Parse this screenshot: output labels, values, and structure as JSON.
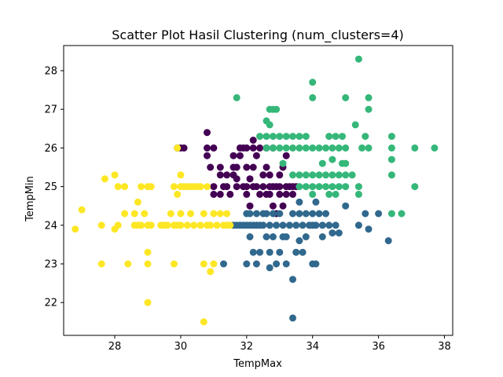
{
  "chart_data": {
    "type": "scatter",
    "title": "Scatter Plot Hasil Clustering (num_clusters=4)",
    "xlabel": "TempMax",
    "ylabel": "TempMin",
    "xlim": [
      26.45,
      38.25
    ],
    "ylim": [
      21.15,
      28.65
    ],
    "xticks": [
      28,
      30,
      32,
      34,
      36,
      38
    ],
    "yticks": [
      22,
      23,
      24,
      25,
      26,
      27,
      28
    ],
    "grid": false,
    "legend": "none",
    "series": [
      {
        "color": "#440154",
        "points": [
          [
            29.9,
            26
          ],
          [
            30,
            26
          ],
          [
            30.1,
            26
          ],
          [
            30.8,
            26.4
          ],
          [
            30.8,
            26
          ],
          [
            30.8,
            25.8
          ],
          [
            31,
            26
          ],
          [
            30.9,
            25.5
          ],
          [
            31,
            25
          ],
          [
            31.2,
            25.5
          ],
          [
            31.2,
            25.3
          ],
          [
            31,
            24.8
          ],
          [
            31.2,
            24.8
          ],
          [
            31.4,
            25.3
          ],
          [
            31.4,
            25
          ],
          [
            31.5,
            24.8
          ],
          [
            31.6,
            25.3
          ],
          [
            31.6,
            25.8
          ],
          [
            31.7,
            25
          ],
          [
            31.7,
            25.5
          ],
          [
            31.8,
            26
          ],
          [
            31.9,
            25
          ],
          [
            31.8,
            25.8
          ],
          [
            32,
            26
          ],
          [
            32,
            25
          ],
          [
            32,
            25.5
          ],
          [
            32,
            24.8
          ],
          [
            32.1,
            24.5
          ],
          [
            32.2,
            25
          ],
          [
            32.2,
            26
          ],
          [
            32.2,
            26.2
          ],
          [
            32.2,
            25.5
          ],
          [
            32.3,
            25.8
          ],
          [
            32.3,
            25
          ],
          [
            32.4,
            26
          ],
          [
            32.5,
            25
          ],
          [
            32.5,
            25.3
          ],
          [
            32.6,
            24.8
          ],
          [
            32.6,
            25.5
          ],
          [
            32.6,
            26
          ],
          [
            32.7,
            25
          ],
          [
            32.7,
            25.3
          ],
          [
            32.7,
            24.8
          ],
          [
            32.8,
            25
          ],
          [
            32.8,
            26
          ],
          [
            32.8,
            24.5
          ],
          [
            32.9,
            25
          ],
          [
            33,
            25
          ],
          [
            33,
            24.8
          ],
          [
            33,
            25.3
          ],
          [
            33.1,
            25.5
          ],
          [
            33.1,
            24.5
          ],
          [
            33.2,
            25
          ],
          [
            33.2,
            25.8
          ],
          [
            33.3,
            25
          ],
          [
            33.4,
            25
          ],
          [
            33.4,
            24.8
          ],
          [
            33.5,
            25
          ],
          [
            31.7,
            25.2
          ],
          [
            32.9,
            24.3
          ],
          [
            31.3,
            25
          ],
          [
            32.4,
            24.8
          ],
          [
            31.9,
            26
          ],
          [
            31.6,
            25.5
          ],
          [
            33.2,
            24.8
          ],
          [
            32.1,
            25.2
          ]
        ]
      },
      {
        "color": "#31688e",
        "points": [
          [
            31.3,
            23
          ],
          [
            31.6,
            24
          ],
          [
            31.7,
            24
          ],
          [
            31.8,
            24
          ],
          [
            31.9,
            24
          ],
          [
            32,
            24
          ],
          [
            32,
            24.3
          ],
          [
            32,
            23
          ],
          [
            32.1,
            24
          ],
          [
            32.1,
            24.3
          ],
          [
            32.1,
            23.7
          ],
          [
            32.2,
            24
          ],
          [
            32.2,
            23.3
          ],
          [
            32.3,
            24
          ],
          [
            32.3,
            24.3
          ],
          [
            32.3,
            23
          ],
          [
            32.4,
            24
          ],
          [
            32.4,
            23.3
          ],
          [
            32.5,
            24
          ],
          [
            32.5,
            24.3
          ],
          [
            32.6,
            24.3
          ],
          [
            32.6,
            23.7
          ],
          [
            32.7,
            24
          ],
          [
            32.7,
            23.3
          ],
          [
            32.8,
            24.3
          ],
          [
            32.8,
            23.7
          ],
          [
            32.9,
            24
          ],
          [
            32.9,
            23
          ],
          [
            33,
            24.3
          ],
          [
            33,
            23.3
          ],
          [
            33.1,
            23.7
          ],
          [
            33.1,
            24
          ],
          [
            33.2,
            23
          ],
          [
            33.3,
            24
          ],
          [
            33.4,
            24.3
          ],
          [
            33.4,
            22.6
          ],
          [
            33.4,
            21.6
          ],
          [
            33.5,
            24
          ],
          [
            33.5,
            23.3
          ],
          [
            33.6,
            24.3
          ],
          [
            33.6,
            24.6
          ],
          [
            33.7,
            23.3
          ],
          [
            33.7,
            24
          ],
          [
            33.8,
            24.3
          ],
          [
            33.8,
            23.7
          ],
          [
            33.9,
            24
          ],
          [
            34,
            24
          ],
          [
            34,
            24.3
          ],
          [
            34,
            23
          ],
          [
            34.1,
            24
          ],
          [
            34.1,
            24.6
          ],
          [
            34.2,
            24.3
          ],
          [
            34.3,
            24
          ],
          [
            34.3,
            23.7
          ],
          [
            34.4,
            24.3
          ],
          [
            34.5,
            24
          ],
          [
            34.6,
            23.8
          ],
          [
            34.7,
            24
          ],
          [
            34.8,
            23.8
          ],
          [
            35,
            24.5
          ],
          [
            35.4,
            24
          ],
          [
            35.6,
            24.3
          ],
          [
            35.7,
            23.9
          ],
          [
            36,
            24.3
          ],
          [
            36.3,
            23.6
          ],
          [
            33.2,
            23.7
          ],
          [
            32.7,
            22.9
          ],
          [
            33.6,
            23.6
          ],
          [
            34.1,
            23
          ]
        ]
      },
      {
        "color": "#35b779",
        "points": [
          [
            31.7,
            27.3
          ],
          [
            32.6,
            26.7
          ],
          [
            32.7,
            26.6
          ],
          [
            32.7,
            27
          ],
          [
            32.8,
            27
          ],
          [
            32.9,
            27
          ],
          [
            32.4,
            26.3
          ],
          [
            32.6,
            26.3
          ],
          [
            32.8,
            26.3
          ],
          [
            33,
            26.3
          ],
          [
            33.2,
            26.3
          ],
          [
            33.4,
            26.3
          ],
          [
            33.6,
            26.3
          ],
          [
            33.8,
            26.3
          ],
          [
            34.5,
            26.3
          ],
          [
            34.7,
            26.3
          ],
          [
            34.9,
            26.3
          ],
          [
            35.6,
            26.3
          ],
          [
            36.4,
            26.3
          ],
          [
            32.6,
            26
          ],
          [
            32.8,
            26
          ],
          [
            33,
            26
          ],
          [
            33.2,
            26
          ],
          [
            33.4,
            26
          ],
          [
            33.6,
            26
          ],
          [
            33.8,
            26
          ],
          [
            34,
            26
          ],
          [
            34.2,
            26
          ],
          [
            34.4,
            26
          ],
          [
            34.6,
            26
          ],
          [
            34.8,
            26
          ],
          [
            35,
            26
          ],
          [
            35.5,
            26
          ],
          [
            35.7,
            26
          ],
          [
            36.4,
            26
          ],
          [
            37.1,
            26
          ],
          [
            37.7,
            26
          ],
          [
            33.1,
            25.6
          ],
          [
            34.3,
            25.6
          ],
          [
            34.9,
            25.6
          ],
          [
            35,
            25.6
          ],
          [
            34.6,
            25.7
          ],
          [
            36.4,
            25.7
          ],
          [
            33.4,
            25.3
          ],
          [
            33.6,
            25.3
          ],
          [
            33.8,
            25.3
          ],
          [
            34,
            25.3
          ],
          [
            34.2,
            25.3
          ],
          [
            34.4,
            25.3
          ],
          [
            34.6,
            25.3
          ],
          [
            34.8,
            25.3
          ],
          [
            35,
            25.3
          ],
          [
            35.2,
            25.3
          ],
          [
            36.4,
            25.3
          ],
          [
            33.6,
            25
          ],
          [
            33.8,
            25
          ],
          [
            34,
            25
          ],
          [
            34.2,
            25
          ],
          [
            34.4,
            25
          ],
          [
            34.6,
            25
          ],
          [
            34.8,
            25
          ],
          [
            35,
            25
          ],
          [
            35.4,
            25
          ],
          [
            37.1,
            25
          ],
          [
            34,
            24.8
          ],
          [
            34.5,
            24.8
          ],
          [
            34.7,
            24.8
          ],
          [
            35.4,
            24.8
          ],
          [
            36.4,
            24.3
          ],
          [
            36.7,
            24.3
          ],
          [
            34,
            27.3
          ],
          [
            34,
            27.7
          ],
          [
            35,
            27.3
          ],
          [
            35.4,
            28.3
          ],
          [
            35.7,
            27.3
          ],
          [
            35.7,
            27
          ],
          [
            35.3,
            26.6
          ]
        ]
      },
      {
        "color": "#fde725",
        "points": [
          [
            26.8,
            23.9
          ],
          [
            27,
            24.4
          ],
          [
            27.6,
            24
          ],
          [
            27.6,
            23
          ],
          [
            27.7,
            25.2
          ],
          [
            28,
            25.3
          ],
          [
            28,
            23.9
          ],
          [
            28.1,
            24
          ],
          [
            28.1,
            25
          ],
          [
            28.3,
            25
          ],
          [
            28.3,
            24.3
          ],
          [
            28.4,
            23
          ],
          [
            28.6,
            24.3
          ],
          [
            28.6,
            24
          ],
          [
            28.7,
            24
          ],
          [
            28.7,
            24.6
          ],
          [
            28.8,
            25
          ],
          [
            28.8,
            24
          ],
          [
            28.9,
            24.3
          ],
          [
            29,
            25
          ],
          [
            29,
            24
          ],
          [
            29,
            23.3
          ],
          [
            29,
            23
          ],
          [
            29,
            22
          ],
          [
            29.1,
            25
          ],
          [
            29.1,
            24
          ],
          [
            29.4,
            24
          ],
          [
            29.5,
            24
          ],
          [
            29.6,
            24
          ],
          [
            29.7,
            24.3
          ],
          [
            29.8,
            25
          ],
          [
            29.8,
            24
          ],
          [
            29.8,
            23
          ],
          [
            29.9,
            24.8
          ],
          [
            29.9,
            24
          ],
          [
            29.9,
            26
          ],
          [
            30,
            25
          ],
          [
            30,
            25.3
          ],
          [
            30,
            24.3
          ],
          [
            30,
            24
          ],
          [
            30.1,
            25
          ],
          [
            30.2,
            25
          ],
          [
            30.2,
            24
          ],
          [
            30.3,
            25
          ],
          [
            30.3,
            24.3
          ],
          [
            30.4,
            25
          ],
          [
            30.4,
            24
          ],
          [
            30.5,
            25
          ],
          [
            30.6,
            24
          ],
          [
            30.6,
            25
          ],
          [
            30.7,
            24.3
          ],
          [
            30.7,
            23
          ],
          [
            30.7,
            21.5
          ],
          [
            30.8,
            24
          ],
          [
            30.8,
            25
          ],
          [
            30.9,
            24
          ],
          [
            30.9,
            22.8
          ],
          [
            31,
            24.3
          ],
          [
            31,
            23
          ],
          [
            31.1,
            24
          ],
          [
            31.2,
            24.3
          ],
          [
            31.3,
            24
          ],
          [
            31.4,
            24
          ],
          [
            31.4,
            24.3
          ],
          [
            31.5,
            24
          ]
        ]
      }
    ]
  }
}
